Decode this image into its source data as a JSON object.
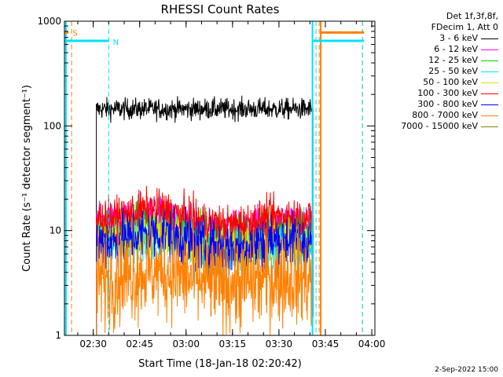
{
  "chart_data": {
    "type": "line",
    "title": "RHESSI Count Rates",
    "xlabel": "Start Time (18-Jan-18 02:20:42)",
    "ylabel": "Count Rate (s⁻¹ detector segment⁻¹)",
    "yscale": "log",
    "ylim": [
      1,
      1000
    ],
    "xlim": [
      "02:20:42",
      "04:01:00"
    ],
    "x_ticks": [
      "02:30",
      "02:45",
      "03:00",
      "03:15",
      "03:30",
      "03:45",
      "04:00"
    ],
    "y_ticks": [
      "1",
      "10",
      "100",
      "1000"
    ],
    "legend_position": "top-right",
    "legend_header": [
      "Det 1f,3f,8f,",
      "FDecim 1, Att 0"
    ],
    "series": [
      {
        "name": "3 - 6 keV",
        "color": "#000000",
        "level": 145,
        "noise": 0.05,
        "hump": 0.0
      },
      {
        "name": "6 - 12 keV",
        "color": "#ff00ff",
        "level": 11.5,
        "noise": 0.09,
        "hump": 0.25
      },
      {
        "name": "12 - 25 keV",
        "color": "#00d000",
        "level": 9.2,
        "noise": 0.12,
        "hump": 0.25
      },
      {
        "name": "25 - 50 keV",
        "color": "#00e0ff",
        "level": 7.2,
        "noise": 0.13,
        "hump": 0.25
      },
      {
        "name": "50 - 100 keV",
        "color": "#e0e000",
        "level": 7.8,
        "noise": 0.12,
        "hump": 0.25
      },
      {
        "name": "100 - 300 keV",
        "color": "#ff0000",
        "level": 13.0,
        "noise": 0.09,
        "hump": 0.25
      },
      {
        "name": "300 - 800 keV",
        "color": "#0000ff",
        "level": 7.6,
        "noise": 0.13,
        "hump": 0.25
      },
      {
        "name": "800 - 7000 keV",
        "color": "#ff8000",
        "level": 3.4,
        "noise": 0.22,
        "hump": 0.2
      },
      {
        "name": "7000 - 15000 keV",
        "color": "#808000",
        "level": 0.0,
        "noise": 0.0,
        "hump": 0.0
      }
    ],
    "data_interval": [
      "02:31:00",
      "03:41:00"
    ],
    "annotations": [
      {
        "label": "S",
        "color": "#ff8000",
        "x": "02:22:20"
      },
      {
        "label": "N",
        "color": "#00e0ff",
        "x": "02:35:20"
      }
    ],
    "orange_dashed_x": [
      "02:23:00",
      "03:43:00",
      "03:57:00"
    ],
    "cyan_dashed_x": [
      "02:35:00",
      "03:42:00",
      "03:57:00"
    ],
    "orange_solid_x": [
      "03:43:30"
    ],
    "cyan_solid_x": [
      "02:21:10",
      "03:40:50"
    ]
  },
  "footer": {
    "timestamp": "2-Sep-2022 15:00"
  }
}
